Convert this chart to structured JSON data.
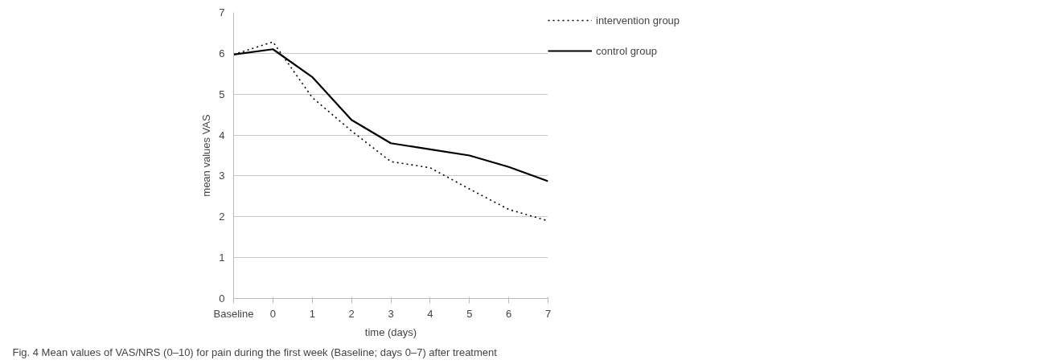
{
  "chart_data": {
    "type": "line",
    "categories": [
      "Baseline",
      "0",
      "1",
      "2",
      "3",
      "4",
      "5",
      "6",
      "7"
    ],
    "series": [
      {
        "name": "intervention group",
        "color": "#000000",
        "line_style": "dotted",
        "values": [
          5.97,
          6.28,
          4.92,
          4.1,
          3.35,
          3.2,
          2.68,
          2.18,
          1.9
        ]
      },
      {
        "name": "control group",
        "color": "#000000",
        "line_style": "solid",
        "values": [
          5.97,
          6.1,
          5.42,
          4.37,
          3.8,
          3.65,
          3.5,
          3.22,
          2.87
        ]
      }
    ],
    "xlabel": "time (days)",
    "ylabel": "mean values VAS",
    "ylim": [
      0,
      7
    ],
    "yticks": [
      0,
      1,
      2,
      3,
      4,
      5,
      6,
      7
    ],
    "grid": "y",
    "legend": "top right",
    "marker": "none",
    "annotations": [
      "Fig. 4 Mean values of VAS/NRS (0–10) for pain during the first week (Baseline; days 0–7) after treatment"
    ]
  }
}
